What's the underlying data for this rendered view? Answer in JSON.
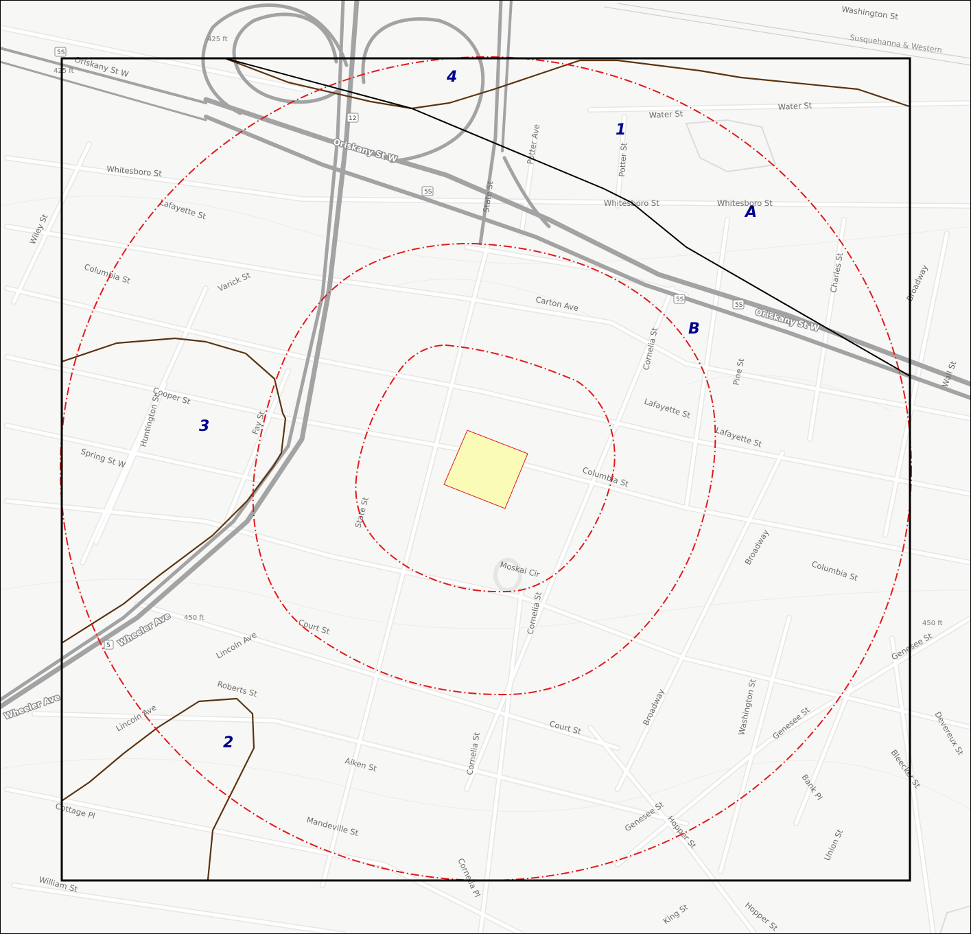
{
  "map": {
    "colors": {
      "background": "#f7f7f5",
      "minor_road": "#ffffff",
      "minor_road_casing": "#e6e6e4",
      "highway": "#a3a3a3",
      "buffer_ring": "#e0191b",
      "site_fill": "#fbfbb8",
      "site_outline": "#e0191b",
      "zone_boundary": "#5a3410",
      "frame": "#000000",
      "area_label": "#00008b"
    },
    "area_labels": [
      "4",
      "1",
      "A",
      "B",
      "3",
      "2"
    ],
    "highway_labels": [
      "Oriskany St W",
      "Oriskany St W",
      "Wheeler Ave",
      "Wheeler Ave"
    ],
    "route_shields": [
      "5S",
      "5S",
      "5S",
      "5S",
      "12",
      "5"
    ],
    "elevation_labels": [
      "425 ft",
      "425 ft",
      "450 ft",
      "450 ft"
    ],
    "rail_labels": [
      "Susquehanna & Western"
    ],
    "street_labels": [
      "Washington St",
      "Oriskany St W",
      "Water St",
      "Water St",
      "Potter Ave",
      "Potter St",
      "Whitesboro St",
      "Whitesboro St",
      "Whitesboro St",
      "Lafayette St",
      "Wiley St",
      "Columbia St",
      "Varick St",
      "Carton Ave",
      "State St",
      "Charles St",
      "Broadway",
      "Cornelia St",
      "Pine St",
      "Cooper St",
      "Huntington St",
      "Fay St",
      "Spring St W",
      "Lafayette St",
      "Lafayette St",
      "Columbia St",
      "State St",
      "Moskal Cir",
      "Broadway",
      "Columbia St",
      "Cornelia St",
      "Court St",
      "Lincoln Ave",
      "Roberts St",
      "Lincoln Ave",
      "Court St",
      "Broadway",
      "Washington St",
      "Genesee St",
      "Genesee St",
      "Aiken St",
      "Cornelia St",
      "Cottage Pl",
      "Mandeville St",
      "Bank Pl",
      "Genesee St",
      "Hopper St",
      "Union St",
      "Bleecker St",
      "Devereux St",
      "Cornelia Pl",
      "William St",
      "King St",
      "Hopper St",
      "Water St",
      "Roberts St",
      "Oriskany St W",
      "Oriskany St W",
      "Wall St"
    ]
  }
}
